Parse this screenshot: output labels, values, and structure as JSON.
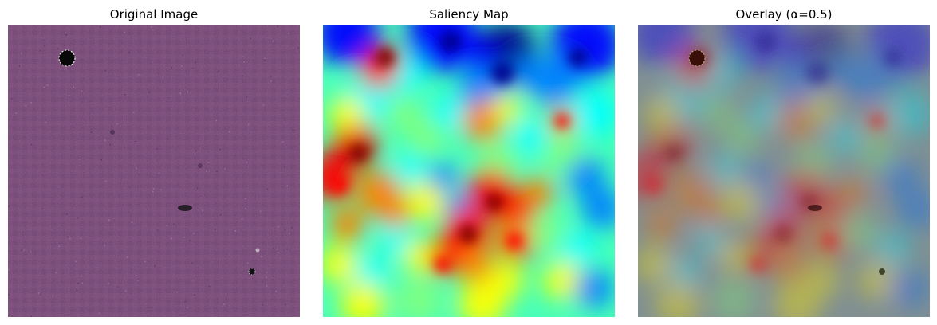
{
  "figure": {
    "panels": [
      {
        "title": "Original Image"
      },
      {
        "title": "Saliency Map"
      },
      {
        "title": "Overlay (α=0.5)"
      }
    ]
  },
  "colors": {
    "tissue_base": "#6e3f6a",
    "jet_colormap": [
      "#00008f",
      "#0000ff",
      "#0080ff",
      "#00ffff",
      "#80ff80",
      "#ffff00",
      "#ff8000",
      "#ff0000",
      "#800000"
    ]
  }
}
